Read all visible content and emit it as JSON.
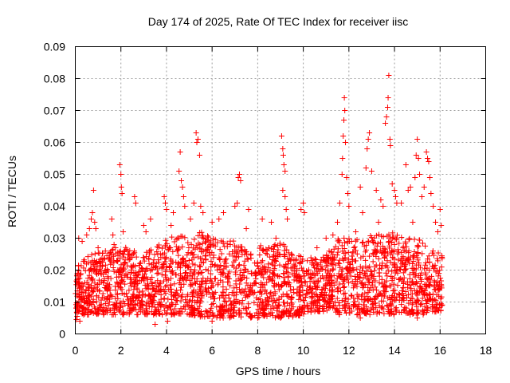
{
  "chart_data": {
    "type": "scatter",
    "title": "Day 174 of 2025, Rate Of TEC Index for receiver iisc",
    "xlabel": "GPS time / hours",
    "ylabel": "ROTI / TECUs",
    "xlim": [
      0,
      18
    ],
    "ylim": [
      0,
      0.09
    ],
    "x_ticks": [
      "0",
      "2",
      "4",
      "6",
      "8",
      "10",
      "12",
      "14",
      "16",
      "18"
    ],
    "y_ticks": [
      "0",
      "0.01",
      "0.02",
      "0.03",
      "0.04",
      "0.05",
      "0.06",
      "0.07",
      "0.08",
      "0.09"
    ],
    "grid": true,
    "legend": "none",
    "marker": "+",
    "color": "#ff0000",
    "time_range": [
      0,
      16.1
    ],
    "band_envelope": [
      [
        0.0,
        0.006,
        0.022
      ],
      [
        0.5,
        0.006,
        0.024
      ],
      [
        1.0,
        0.006,
        0.026
      ],
      [
        1.5,
        0.006,
        0.026
      ],
      [
        2.0,
        0.006,
        0.028
      ],
      [
        2.5,
        0.006,
        0.026
      ],
      [
        3.0,
        0.006,
        0.026
      ],
      [
        3.5,
        0.006,
        0.027
      ],
      [
        4.0,
        0.006,
        0.03
      ],
      [
        4.5,
        0.006,
        0.031
      ],
      [
        5.0,
        0.006,
        0.03
      ],
      [
        5.5,
        0.005,
        0.032
      ],
      [
        6.0,
        0.005,
        0.03
      ],
      [
        6.5,
        0.005,
        0.029
      ],
      [
        7.0,
        0.005,
        0.03
      ],
      [
        7.5,
        0.005,
        0.027
      ],
      [
        8.0,
        0.005,
        0.028
      ],
      [
        8.5,
        0.005,
        0.027
      ],
      [
        9.0,
        0.005,
        0.029
      ],
      [
        9.5,
        0.005,
        0.026
      ],
      [
        10.0,
        0.006,
        0.024
      ],
      [
        10.5,
        0.007,
        0.024
      ],
      [
        11.0,
        0.007,
        0.025
      ],
      [
        11.5,
        0.006,
        0.03
      ],
      [
        12.0,
        0.006,
        0.03
      ],
      [
        12.5,
        0.006,
        0.03
      ],
      [
        13.0,
        0.006,
        0.031
      ],
      [
        13.5,
        0.006,
        0.032
      ],
      [
        14.0,
        0.006,
        0.032
      ],
      [
        14.5,
        0.006,
        0.03
      ],
      [
        15.0,
        0.006,
        0.03
      ],
      [
        15.5,
        0.006,
        0.027
      ],
      [
        16.1,
        0.007,
        0.025
      ]
    ],
    "points": [
      [
        0.15,
        0.03
      ],
      [
        0.3,
        0.029
      ],
      [
        0.5,
        0.031
      ],
      [
        0.62,
        0.033
      ],
      [
        0.7,
        0.036
      ],
      [
        0.75,
        0.038
      ],
      [
        0.8,
        0.045
      ],
      [
        0.85,
        0.035
      ],
      [
        1.0,
        0.027
      ],
      [
        1.6,
        0.036
      ],
      [
        1.65,
        0.031
      ],
      [
        1.95,
        0.053
      ],
      [
        2.0,
        0.05
      ],
      [
        2.02,
        0.046
      ],
      [
        2.05,
        0.044
      ],
      [
        2.1,
        0.032
      ],
      [
        2.6,
        0.043
      ],
      [
        2.65,
        0.041
      ],
      [
        3.0,
        0.034
      ],
      [
        3.3,
        0.036
      ],
      [
        3.9,
        0.043
      ],
      [
        3.95,
        0.041
      ],
      [
        4.0,
        0.039
      ],
      [
        4.2,
        0.034
      ],
      [
        4.3,
        0.038
      ],
      [
        4.55,
        0.051
      ],
      [
        4.6,
        0.057
      ],
      [
        4.65,
        0.048
      ],
      [
        4.7,
        0.046
      ],
      [
        4.75,
        0.043
      ],
      [
        4.8,
        0.04
      ],
      [
        5.05,
        0.036
      ],
      [
        5.2,
        0.041
      ],
      [
        5.3,
        0.063
      ],
      [
        5.33,
        0.06
      ],
      [
        5.38,
        0.061
      ],
      [
        5.45,
        0.056
      ],
      [
        5.5,
        0.04
      ],
      [
        5.6,
        0.038
      ],
      [
        6.0,
        0.035
      ],
      [
        6.3,
        0.036
      ],
      [
        6.5,
        0.038
      ],
      [
        7.0,
        0.04
      ],
      [
        7.1,
        0.041
      ],
      [
        7.15,
        0.049
      ],
      [
        7.2,
        0.05
      ],
      [
        7.25,
        0.048
      ],
      [
        7.6,
        0.039
      ],
      [
        8.2,
        0.036
      ],
      [
        8.6,
        0.035
      ],
      [
        9.05,
        0.062
      ],
      [
        9.1,
        0.058
      ],
      [
        9.12,
        0.056
      ],
      [
        9.15,
        0.053
      ],
      [
        9.2,
        0.051
      ],
      [
        9.1,
        0.045
      ],
      [
        9.2,
        0.043
      ],
      [
        9.25,
        0.039
      ],
      [
        9.3,
        0.036
      ],
      [
        9.9,
        0.039
      ],
      [
        10.0,
        0.041
      ],
      [
        10.05,
        0.038
      ],
      [
        11.0,
        0.03
      ],
      [
        11.3,
        0.031
      ],
      [
        11.5,
        0.035
      ],
      [
        11.6,
        0.041
      ],
      [
        11.7,
        0.05
      ],
      [
        11.72,
        0.055
      ],
      [
        11.75,
        0.062
      ],
      [
        11.78,
        0.067
      ],
      [
        11.8,
        0.074
      ],
      [
        11.82,
        0.07
      ],
      [
        11.85,
        0.06
      ],
      [
        11.9,
        0.049
      ],
      [
        11.95,
        0.044
      ],
      [
        12.0,
        0.04
      ],
      [
        12.5,
        0.046
      ],
      [
        12.6,
        0.038
      ],
      [
        12.75,
        0.052
      ],
      [
        12.8,
        0.058
      ],
      [
        12.85,
        0.061
      ],
      [
        12.9,
        0.063
      ],
      [
        13.0,
        0.051
      ],
      [
        13.2,
        0.045
      ],
      [
        13.4,
        0.042
      ],
      [
        13.5,
        0.04
      ],
      [
        13.6,
        0.066
      ],
      [
        13.65,
        0.068
      ],
      [
        13.7,
        0.071
      ],
      [
        13.72,
        0.074
      ],
      [
        13.75,
        0.081
      ],
      [
        13.8,
        0.061
      ],
      [
        13.82,
        0.059
      ],
      [
        13.9,
        0.047
      ],
      [
        14.0,
        0.045
      ],
      [
        14.05,
        0.043
      ],
      [
        14.1,
        0.041
      ],
      [
        14.3,
        0.041
      ],
      [
        14.5,
        0.053
      ],
      [
        14.6,
        0.045
      ],
      [
        14.7,
        0.046
      ],
      [
        14.9,
        0.049
      ],
      [
        14.95,
        0.056
      ],
      [
        15.0,
        0.061
      ],
      [
        15.05,
        0.055
      ],
      [
        15.1,
        0.05
      ],
      [
        15.2,
        0.043
      ],
      [
        15.3,
        0.046
      ],
      [
        15.4,
        0.057
      ],
      [
        15.45,
        0.055
      ],
      [
        15.5,
        0.054
      ],
      [
        15.55,
        0.049
      ],
      [
        15.6,
        0.044
      ],
      [
        15.7,
        0.04
      ],
      [
        15.8,
        0.035
      ],
      [
        16.0,
        0.039
      ],
      [
        16.05,
        0.034
      ],
      [
        0.2,
        0.004
      ],
      [
        3.5,
        0.003
      ],
      [
        6.0,
        0.004
      ],
      [
        8.0,
        0.005
      ],
      [
        9.0,
        0.005
      ],
      [
        12.5,
        0.005
      ],
      [
        15.0,
        0.005
      ],
      [
        4.05,
        0.004
      ],
      [
        0.08,
        0.0055
      ],
      [
        0.1,
        0.0075
      ],
      [
        0.05,
        0.0045
      ],
      [
        0.9,
        0.033
      ],
      [
        1.7,
        0.028
      ],
      [
        2.3,
        0.026
      ],
      [
        3.1,
        0.032
      ],
      [
        5.8,
        0.027
      ],
      [
        6.8,
        0.028
      ],
      [
        7.5,
        0.033
      ],
      [
        8.8,
        0.03
      ],
      [
        10.6,
        0.027
      ],
      [
        12.3,
        0.032
      ],
      [
        13.3,
        0.035
      ],
      [
        14.8,
        0.035
      ],
      [
        15.9,
        0.032
      ],
      [
        16.08,
        0.024
      ]
    ]
  }
}
